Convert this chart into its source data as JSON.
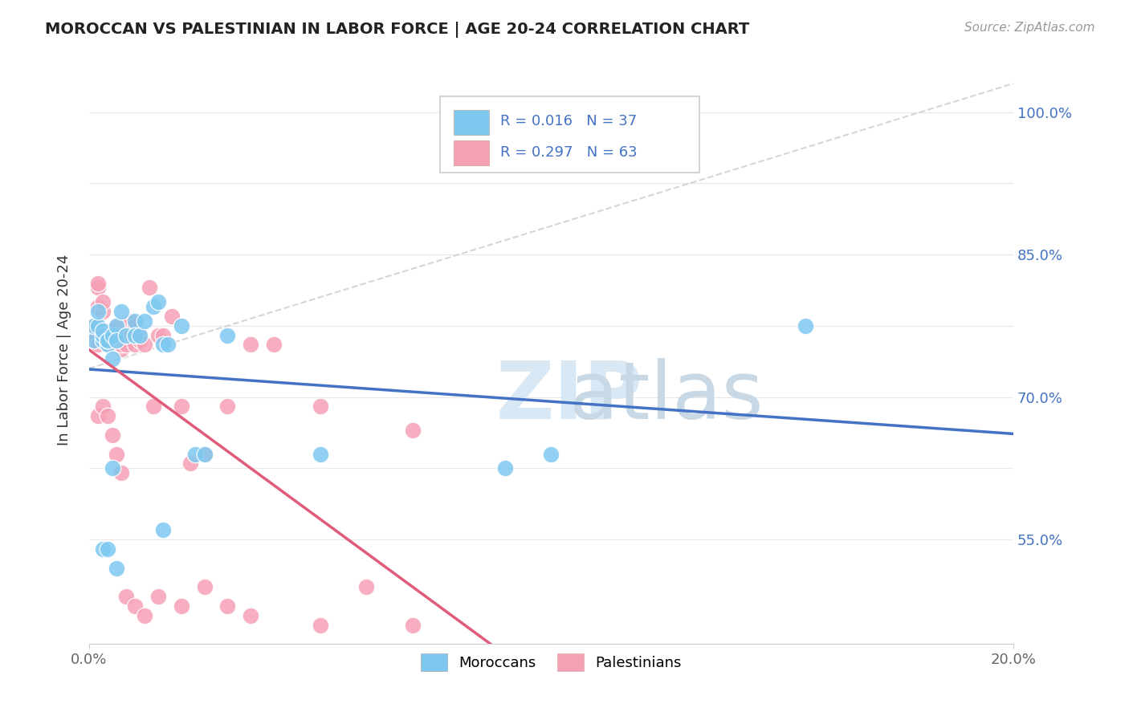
{
  "title": "MOROCCAN VS PALESTINIAN IN LABOR FORCE | AGE 20-24 CORRELATION CHART",
  "source": "Source: ZipAtlas.com",
  "ylabel": "In Labor Force | Age 20-24",
  "xlim": [
    0.0,
    0.2
  ],
  "ylim": [
    0.44,
    1.06
  ],
  "moroccan_color": "#7EC8F0",
  "moroccan_edge": "#7EC8F0",
  "palestinian_color": "#F5A0B5",
  "palestinian_edge": "#F5A0B5",
  "trend_moroccan_color": "#4472C4",
  "trend_palestinian_color": "#E05C7A",
  "diagonal_color": "#CCCCCC",
  "background_color": "#FFFFFF",
  "grid_color": "#E8E8E8",
  "y_ticks": [
    0.55,
    0.625,
    0.7,
    0.775,
    0.85,
    0.925,
    1.0
  ],
  "y_tick_labels": [
    "55.0%",
    "",
    "70.0%",
    "",
    "85.0%",
    "",
    "100.0%"
  ],
  "moroccan_x": [
    0.001,
    0.001,
    0.002,
    0.002,
    0.003,
    0.003,
    0.003,
    0.004,
    0.004,
    0.004,
    0.005,
    0.005,
    0.006,
    0.006,
    0.007,
    0.008,
    0.01,
    0.01,
    0.011,
    0.012,
    0.014,
    0.015,
    0.016,
    0.016,
    0.017,
    0.02,
    0.023,
    0.025,
    0.03,
    0.05,
    0.09,
    0.1,
    0.155,
    0.003,
    0.004,
    0.005,
    0.006
  ],
  "moroccan_y": [
    0.76,
    0.775,
    0.775,
    0.79,
    0.76,
    0.765,
    0.77,
    0.755,
    0.76,
    0.76,
    0.765,
    0.74,
    0.775,
    0.76,
    0.79,
    0.765,
    0.78,
    0.765,
    0.765,
    0.78,
    0.795,
    0.8,
    0.56,
    0.755,
    0.755,
    0.775,
    0.64,
    0.64,
    0.765,
    0.64,
    0.625,
    0.64,
    0.775,
    0.54,
    0.54,
    0.625,
    0.52
  ],
  "palestinian_x": [
    0.001,
    0.001,
    0.001,
    0.002,
    0.002,
    0.002,
    0.002,
    0.003,
    0.003,
    0.003,
    0.003,
    0.004,
    0.004,
    0.004,
    0.005,
    0.005,
    0.005,
    0.005,
    0.006,
    0.006,
    0.006,
    0.007,
    0.007,
    0.007,
    0.008,
    0.008,
    0.009,
    0.009,
    0.01,
    0.01,
    0.011,
    0.011,
    0.012,
    0.013,
    0.014,
    0.015,
    0.016,
    0.018,
    0.02,
    0.022,
    0.025,
    0.03,
    0.035,
    0.04,
    0.05,
    0.06,
    0.07,
    0.002,
    0.003,
    0.004,
    0.005,
    0.006,
    0.007,
    0.008,
    0.01,
    0.012,
    0.015,
    0.02,
    0.025,
    0.03,
    0.035,
    0.05,
    0.07
  ],
  "palestinian_y": [
    0.775,
    0.77,
    0.76,
    0.755,
    0.795,
    0.815,
    0.82,
    0.77,
    0.76,
    0.79,
    0.8,
    0.755,
    0.765,
    0.77,
    0.76,
    0.77,
    0.755,
    0.765,
    0.76,
    0.77,
    0.775,
    0.75,
    0.755,
    0.765,
    0.755,
    0.765,
    0.78,
    0.765,
    0.755,
    0.775,
    0.765,
    0.76,
    0.755,
    0.815,
    0.69,
    0.765,
    0.765,
    0.785,
    0.69,
    0.63,
    0.64,
    0.69,
    0.755,
    0.755,
    0.69,
    0.5,
    0.665,
    0.68,
    0.69,
    0.68,
    0.66,
    0.64,
    0.62,
    0.49,
    0.48,
    0.47,
    0.49,
    0.48,
    0.5,
    0.48,
    0.47,
    0.46,
    0.46
  ]
}
